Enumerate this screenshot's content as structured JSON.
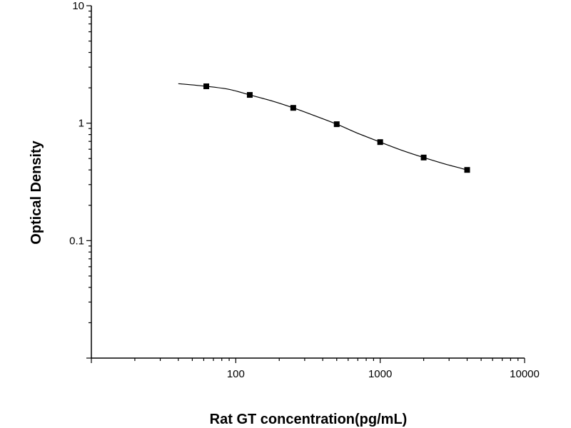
{
  "chart_data": {
    "type": "scatter",
    "title": "",
    "xlabel": "Rat GT concentration(pg/mL)",
    "ylabel": "Optical Density",
    "x_scale": "log",
    "y_scale": "log",
    "xlim": [
      10,
      10000
    ],
    "ylim": [
      0.01,
      10
    ],
    "x_ticks": [
      100,
      1000,
      10000
    ],
    "x_tick_labels": [
      "100",
      "1000",
      "10000"
    ],
    "y_ticks": [
      0.1,
      1,
      10
    ],
    "y_tick_labels": [
      "0.1",
      "1",
      "10"
    ],
    "grid": false,
    "legend": "none",
    "series": [
      {
        "marker": "square",
        "color": "#000000",
        "points": [
          {
            "x": 62.5,
            "y": 2.06
          },
          {
            "x": 125,
            "y": 1.74
          },
          {
            "x": 250,
            "y": 1.35
          },
          {
            "x": 500,
            "y": 0.98
          },
          {
            "x": 1000,
            "y": 0.69
          },
          {
            "x": 2000,
            "y": 0.51
          },
          {
            "x": 4000,
            "y": 0.4
          }
        ]
      }
    ],
    "fit_curve": {
      "color": "#000000",
      "points": [
        {
          "x": 40,
          "y": 2.17
        },
        {
          "x": 62.5,
          "y": 2.06
        },
        {
          "x": 90,
          "y": 1.94
        },
        {
          "x": 125,
          "y": 1.74
        },
        {
          "x": 180,
          "y": 1.54
        },
        {
          "x": 250,
          "y": 1.35
        },
        {
          "x": 350,
          "y": 1.16
        },
        {
          "x": 500,
          "y": 0.98
        },
        {
          "x": 700,
          "y": 0.82
        },
        {
          "x": 1000,
          "y": 0.69
        },
        {
          "x": 1400,
          "y": 0.59
        },
        {
          "x": 2000,
          "y": 0.51
        },
        {
          "x": 2800,
          "y": 0.45
        },
        {
          "x": 4000,
          "y": 0.4
        }
      ]
    }
  }
}
